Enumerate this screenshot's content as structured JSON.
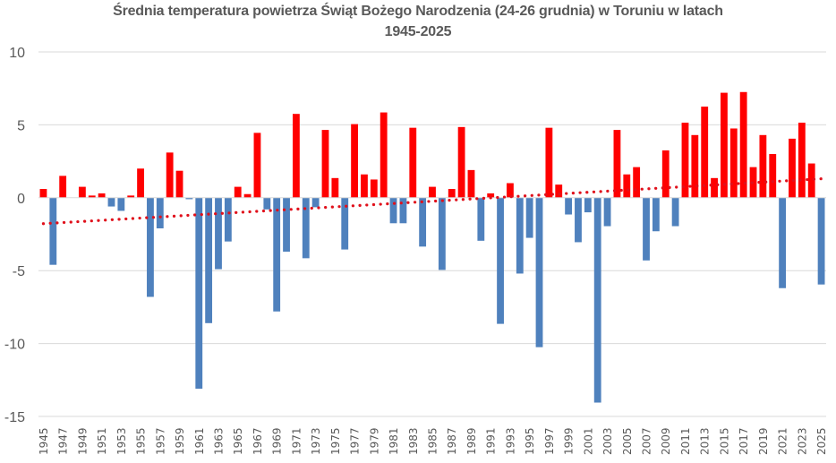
{
  "chart_data": {
    "type": "bar",
    "title": "Średnia temperatura powietrza Świąt Bożego Narodzenia (24-26 grudnia) w Toruniu w latach",
    "subtitle": "1945-2025",
    "xlabel": "",
    "ylabel": "",
    "ylim": [
      -15,
      10
    ],
    "yticks": [
      10,
      5,
      0,
      -5,
      -10,
      -15
    ],
    "grid": true,
    "legend": "none",
    "x_label_step": 2,
    "colors": {
      "positive": "#ff0000",
      "negative": "#4f81bd",
      "trend": "#e0101b",
      "grid": "#d9d9d9",
      "text": "#595959"
    },
    "categories": [
      "1945",
      "1946",
      "1947",
      "1948",
      "1949",
      "1950",
      "1951",
      "1952",
      "1953",
      "1954",
      "1955",
      "1956",
      "1957",
      "1958",
      "1959",
      "1960",
      "1961",
      "1962",
      "1963",
      "1964",
      "1965",
      "1966",
      "1967",
      "1968",
      "1969",
      "1970",
      "1971",
      "1972",
      "1973",
      "1974",
      "1975",
      "1976",
      "1977",
      "1978",
      "1979",
      "1980",
      "1981",
      "1982",
      "1983",
      "1984",
      "1985",
      "1986",
      "1987",
      "1988",
      "1989",
      "1990",
      "1991",
      "1992",
      "1993",
      "1994",
      "1995",
      "1996",
      "1997",
      "1998",
      "1999",
      "2000",
      "2001",
      "2002",
      "2003",
      "2004",
      "2005",
      "2006",
      "2007",
      "2008",
      "2009",
      "2010",
      "2011",
      "2012",
      "2013",
      "2014",
      "2015",
      "2016",
      "2017",
      "2018",
      "2019",
      "2020",
      "2021",
      "2022",
      "2023",
      "2024",
      "2025"
    ],
    "values": [
      0.6,
      -4.6,
      1.5,
      0.0,
      0.75,
      0.15,
      0.3,
      -0.6,
      -0.9,
      0.15,
      2.0,
      -6.8,
      -2.1,
      3.1,
      1.85,
      -0.1,
      -13.1,
      -8.6,
      -4.9,
      -3.0,
      0.75,
      0.25,
      4.45,
      -0.8,
      -7.8,
      -3.7,
      5.75,
      -4.15,
      -0.65,
      4.65,
      1.35,
      -3.55,
      5.05,
      1.6,
      1.25,
      5.85,
      -1.75,
      -1.75,
      4.8,
      -3.35,
      0.75,
      -4.95,
      0.6,
      4.85,
      1.9,
      -2.95,
      0.3,
      -8.65,
      1.0,
      -5.2,
      -2.75,
      -10.25,
      4.8,
      0.9,
      -1.15,
      -3.05,
      -1.0,
      -14.05,
      -1.95,
      4.65,
      1.6,
      2.1,
      -4.3,
      -2.3,
      3.25,
      -1.95,
      5.15,
      4.3,
      6.25,
      1.35,
      7.2,
      4.75,
      7.25,
      2.1,
      4.3,
      3.0,
      -6.2,
      4.05,
      5.15,
      2.35,
      -5.95
    ],
    "trendline": {
      "type": "linear",
      "style": "dotted",
      "start": {
        "x": "1945",
        "y": -1.78
      },
      "end": {
        "x": "2025",
        "y": 1.3
      }
    }
  }
}
